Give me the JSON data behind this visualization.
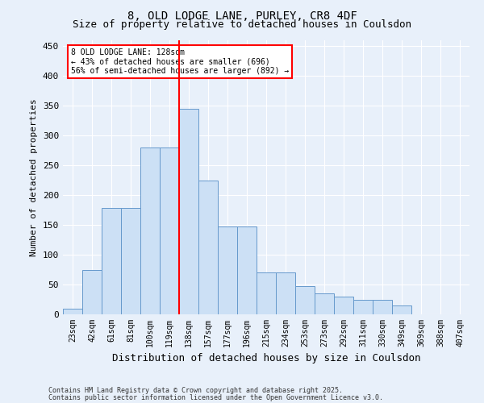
{
  "title_line1": "8, OLD LODGE LANE, PURLEY, CR8 4DF",
  "title_line2": "Size of property relative to detached houses in Coulsdon",
  "xlabel": "Distribution of detached houses by size in Coulsdon",
  "ylabel": "Number of detached properties",
  "categories": [
    "23sqm",
    "42sqm",
    "61sqm",
    "81sqm",
    "100sqm",
    "119sqm",
    "138sqm",
    "157sqm",
    "177sqm",
    "196sqm",
    "215sqm",
    "234sqm",
    "253sqm",
    "273sqm",
    "292sqm",
    "311sqm",
    "330sqm",
    "349sqm",
    "369sqm",
    "388sqm",
    "407sqm"
  ],
  "values": [
    10,
    75,
    178,
    178,
    280,
    280,
    345,
    225,
    148,
    148,
    70,
    70,
    47,
    35,
    30,
    25,
    25,
    15,
    0,
    0,
    0
  ],
  "bar_color": "#cce0f5",
  "bar_edge_color": "#6699cc",
  "vline_color": "red",
  "annotation_line1": "8 OLD LODGE LANE: 128sqm",
  "annotation_line2": "← 43% of detached houses are smaller (696)",
  "annotation_line3": "56% of semi-detached houses are larger (892) →",
  "annotation_box_color": "white",
  "annotation_box_edge": "red",
  "footer_line1": "Contains HM Land Registry data © Crown copyright and database right 2025.",
  "footer_line2": "Contains public sector information licensed under the Open Government Licence v3.0.",
  "bg_color": "#e8f0fa",
  "ylim": [
    0,
    460
  ],
  "yticks": [
    0,
    50,
    100,
    150,
    200,
    250,
    300,
    350,
    400,
    450
  ],
  "title_fontsize": 10,
  "subtitle_fontsize": 9,
  "axis_label_fontsize": 8,
  "tick_fontsize": 7,
  "footer_fontsize": 6
}
